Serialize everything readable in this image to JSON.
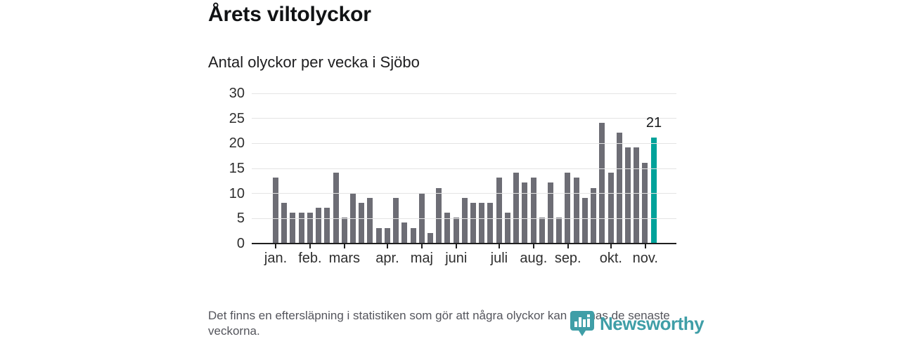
{
  "header": {
    "title": "Årets viltolyckor",
    "subtitle": "Antal olyckor per vecka i Sjöbo"
  },
  "chart_data": {
    "type": "bar",
    "title": "Årets viltolyckor",
    "subtitle": "Antal olyckor per vecka i Sjöbo",
    "values": [
      13,
      8,
      6,
      6,
      6,
      7,
      7,
      14,
      5,
      10,
      8,
      9,
      3,
      3,
      9,
      4,
      3,
      10,
      2,
      11,
      6,
      5,
      9,
      8,
      8,
      8,
      13,
      6,
      14,
      12,
      13,
      5,
      12,
      5,
      14,
      13,
      9,
      11,
      24,
      14,
      22,
      19,
      19,
      16,
      21
    ],
    "highlight_last_bar": true,
    "last_bar_label": "21",
    "ylim": [
      0,
      30
    ],
    "yticks": [
      0,
      5,
      10,
      15,
      20,
      25,
      30
    ],
    "month_ticks": [
      {
        "label": "jan.",
        "week": 1
      },
      {
        "label": "feb.",
        "week": 5
      },
      {
        "label": "mars",
        "week": 9
      },
      {
        "label": "apr.",
        "week": 14
      },
      {
        "label": "maj",
        "week": 18
      },
      {
        "label": "juni",
        "week": 22
      },
      {
        "label": "juli",
        "week": 27
      },
      {
        "label": "aug.",
        "week": 31
      },
      {
        "label": "sep.",
        "week": 35
      },
      {
        "label": "okt.",
        "week": 40
      },
      {
        "label": "nov.",
        "week": 44
      }
    ],
    "grid": true,
    "legend": false,
    "colors": {
      "bar": "#6d6d75",
      "highlight": "#00a29a",
      "grid": "#e4e4e4",
      "axis": "#1f1f1f"
    }
  },
  "footer": {
    "note": "Det finns en eftersläpning i statistiken som gör att några olyckor kan saknas de senaste veckorna."
  },
  "branding": {
    "wordmark": "Newsworthy",
    "color": "#3f9ea7"
  }
}
